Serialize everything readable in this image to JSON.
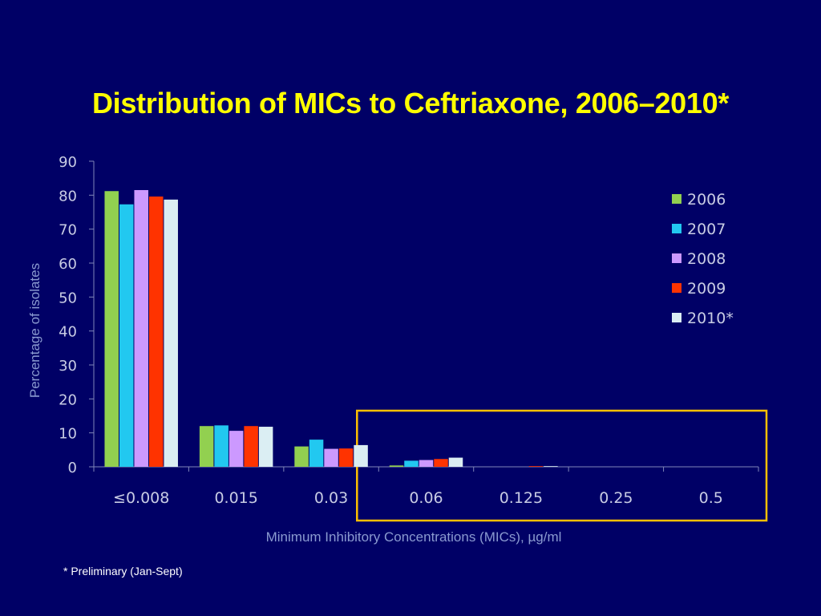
{
  "title": "Distribution of MICs to Ceftriaxone, 2006–2010*",
  "footnote": "* Preliminary (Jan-Sept)",
  "colors": {
    "background": "#000066",
    "title": "#ffff00",
    "highlight_box": "#ffc000"
  },
  "chart_data": {
    "type": "bar",
    "xlabel": "Minimum Inhibitory Concentrations (MICs),  µg/ml",
    "ylabel": "Percentage of isolates",
    "ylim": [
      0,
      90
    ],
    "yticks": [
      "0",
      "10",
      "20",
      "30",
      "40",
      "50",
      "60",
      "70",
      "80",
      "90"
    ],
    "grid": false,
    "legend_position": "right",
    "categories": [
      "≤0.008",
      "0.015",
      "0.03",
      "0.06",
      "0.125",
      "0.25",
      "0.5"
    ],
    "series": [
      {
        "name": "2006",
        "color": "#92d050",
        "values": [
          81.2,
          12.0,
          6.0,
          0.4,
          0.0,
          0.0,
          0.0
        ]
      },
      {
        "name": "2007",
        "color": "#22c8f0",
        "values": [
          77.3,
          12.2,
          8.0,
          1.8,
          0.0,
          0.0,
          0.0
        ]
      },
      {
        "name": "2008",
        "color": "#cc99ff",
        "values": [
          81.5,
          10.6,
          5.3,
          2.0,
          0.0,
          0.0,
          0.0
        ]
      },
      {
        "name": "2009",
        "color": "#ff3300",
        "values": [
          79.6,
          12.0,
          5.4,
          2.3,
          0.2,
          0.0,
          0.0
        ]
      },
      {
        "name": "2010*",
        "color": "#dbeef3",
        "values": [
          78.7,
          11.8,
          6.4,
          2.7,
          0.2,
          0.0,
          0.0
        ]
      }
    ],
    "highlight": {
      "categories_from": "0.06",
      "categories_to": "0.5"
    }
  }
}
